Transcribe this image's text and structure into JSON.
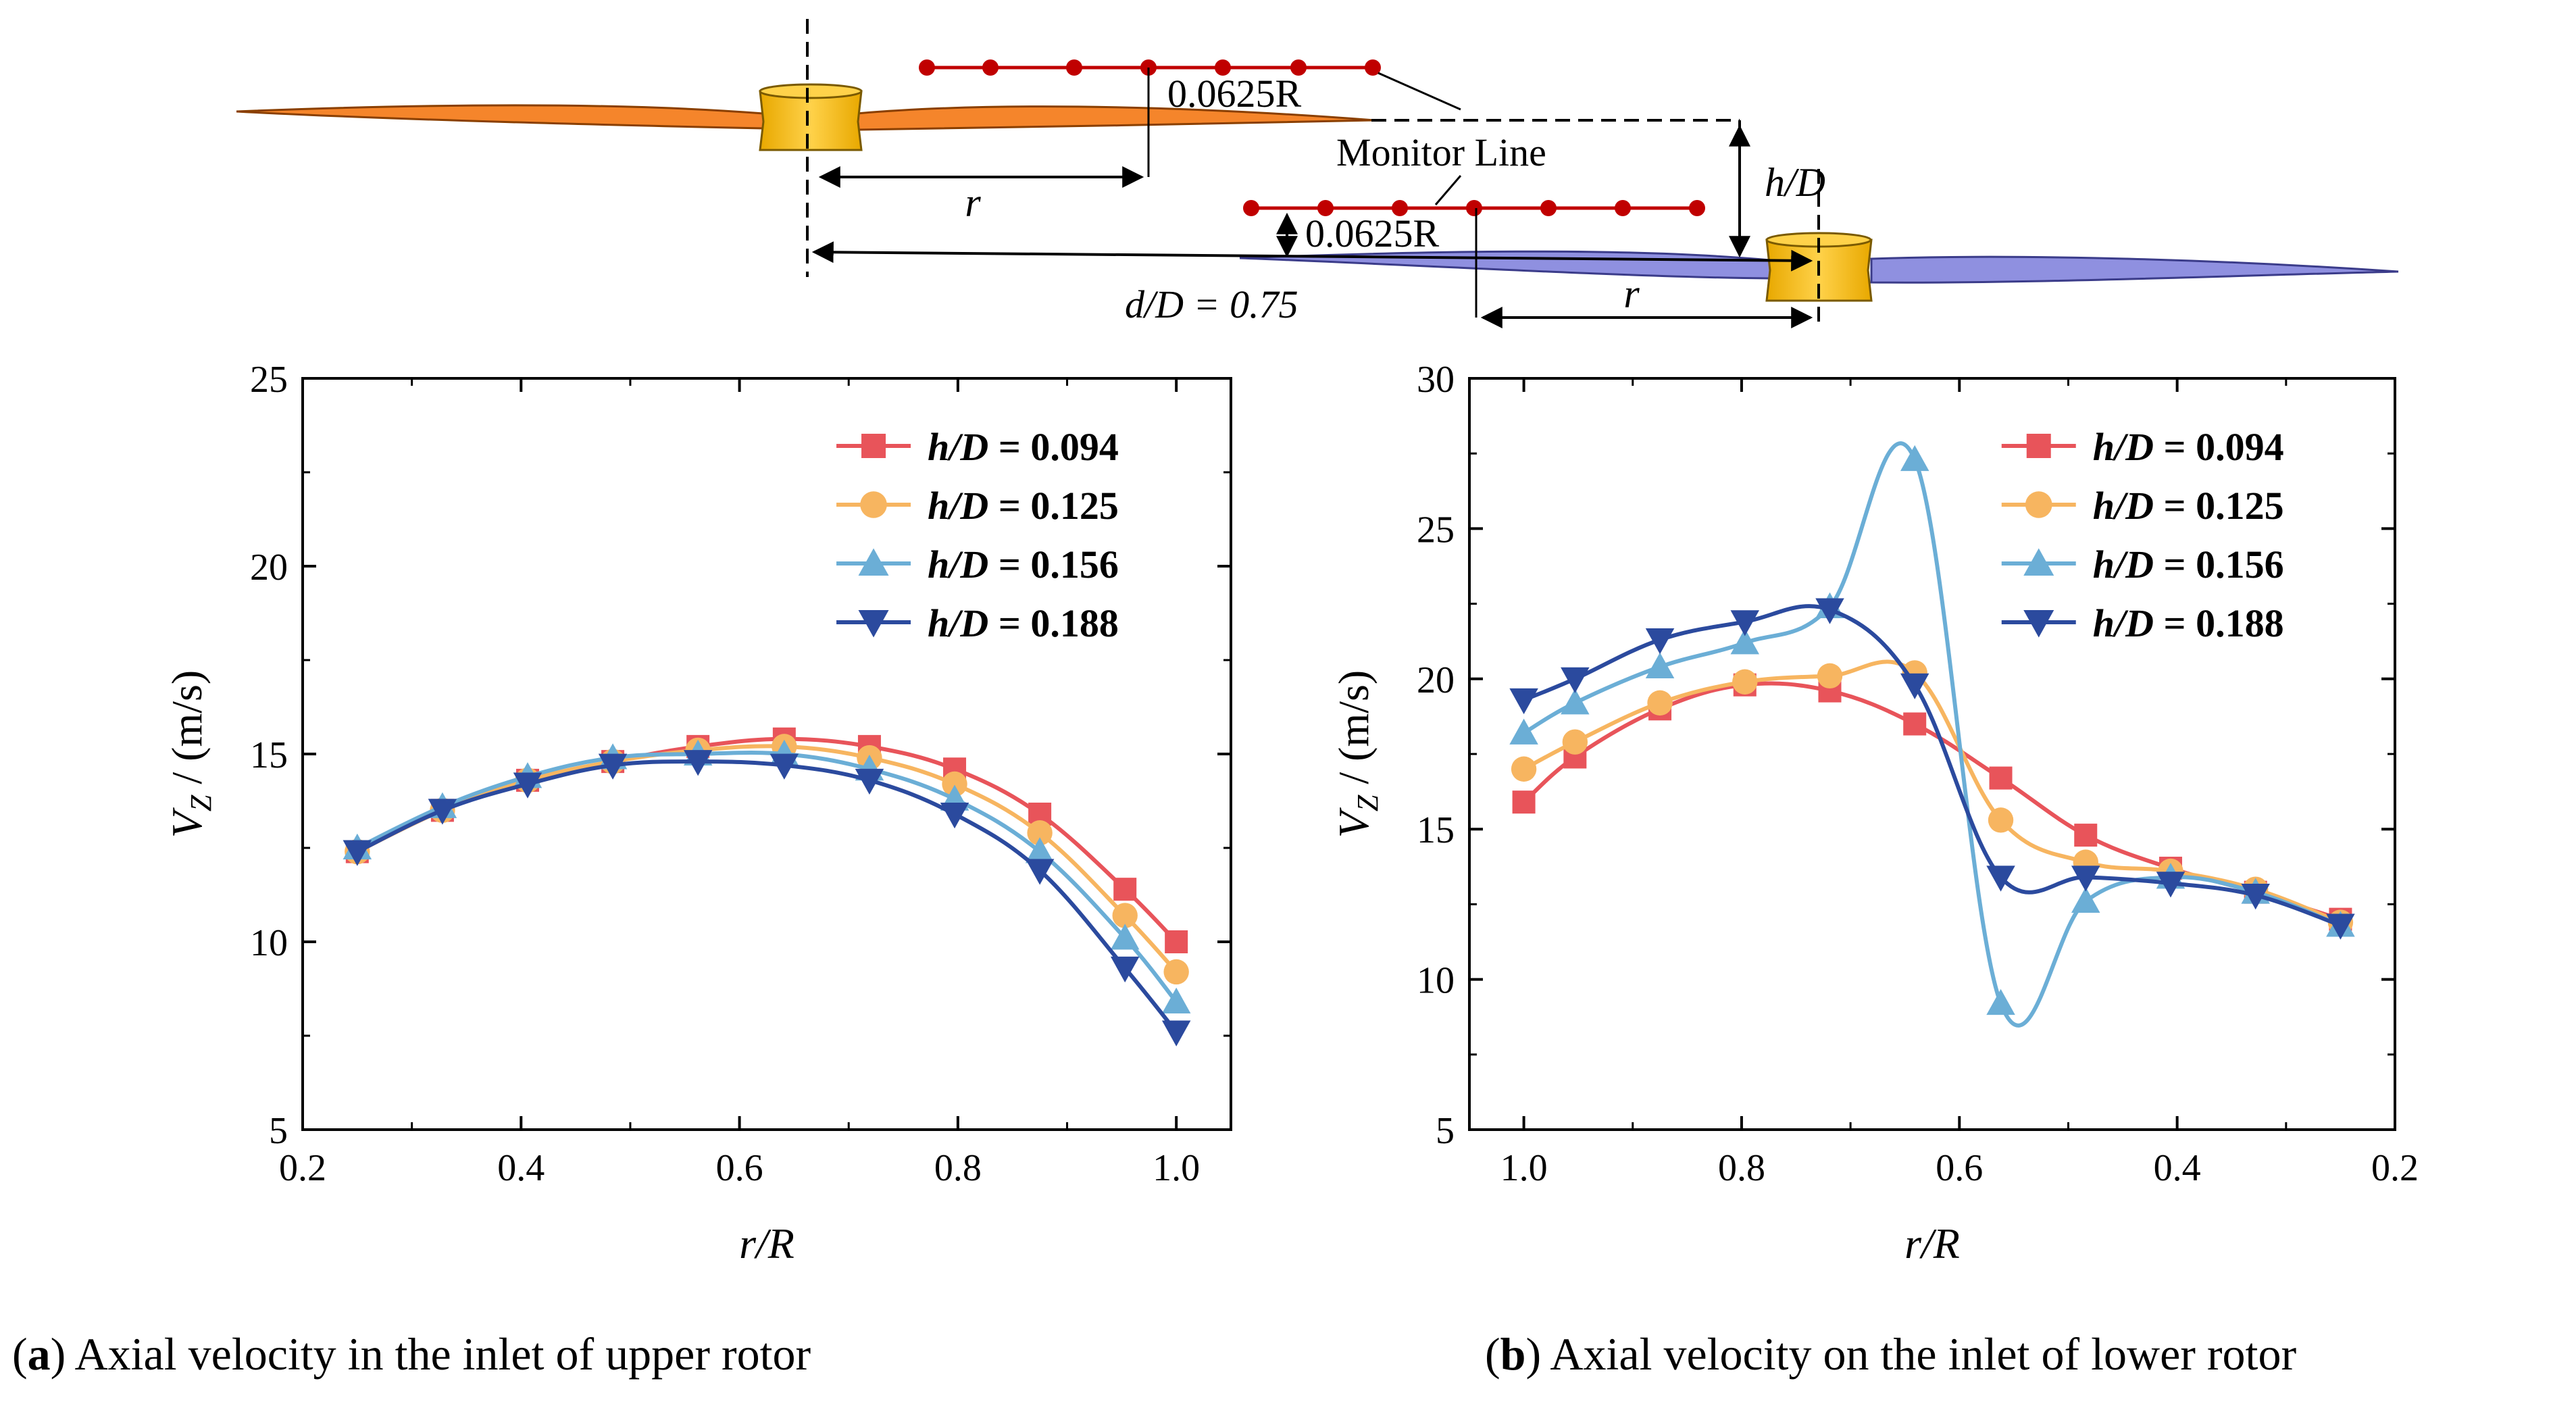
{
  "diagram": {
    "spacing_top": "0.0625R",
    "spacing_bottom": "0.0625R",
    "monitor_line_label": "Monitor Line",
    "radius_label_top": "r",
    "radius_label_bottom": "r",
    "height_label": "h/D",
    "distance_label": "d/D = 0.75",
    "colors": {
      "upper_blade": "#F5852B",
      "lower_blade": "#8F90E0",
      "hub": "#FFC41E",
      "monitor": "#C00000"
    }
  },
  "chart_data": [
    {
      "type": "line",
      "xlabel": "r/R",
      "ylabel": "VZ / (m/s)",
      "xlim": [
        0.2,
        1.05
      ],
      "ylim": [
        5,
        25
      ],
      "x_reversed": false,
      "xticks": [
        "0.2",
        "0.4",
        "0.6",
        "0.8",
        "1.0"
      ],
      "yticks": [
        "5",
        "10",
        "15",
        "20",
        "25"
      ],
      "legend_position": "top-right",
      "grid": false,
      "x": [
        0.25,
        0.328,
        0.406,
        0.484,
        0.562,
        0.641,
        0.719,
        0.797,
        0.875,
        0.953,
        1.0
      ],
      "series": [
        {
          "name": "h/D = 0.094",
          "color": "#E8545A",
          "marker": "square",
          "values": [
            12.4,
            13.5,
            14.3,
            14.8,
            15.2,
            15.4,
            15.2,
            14.6,
            13.4,
            11.4,
            10.0
          ]
        },
        {
          "name": "h/D = 0.125",
          "color": "#F7B560",
          "marker": "circle",
          "values": [
            12.4,
            13.5,
            14.3,
            14.8,
            15.1,
            15.2,
            14.9,
            14.2,
            12.9,
            10.7,
            9.2
          ]
        },
        {
          "name": "h/D = 0.156",
          "color": "#6BAED6",
          "marker": "triangle-up",
          "values": [
            12.5,
            13.6,
            14.4,
            14.9,
            15.0,
            15.0,
            14.6,
            13.8,
            12.4,
            10.1,
            8.4
          ]
        },
        {
          "name": "h/D = 0.188",
          "color": "#2B4A9E",
          "marker": "triangle-down",
          "values": [
            12.4,
            13.5,
            14.2,
            14.7,
            14.8,
            14.7,
            14.3,
            13.4,
            11.9,
            9.3,
            7.6
          ]
        }
      ]
    },
    {
      "type": "line",
      "xlabel": "r/R",
      "ylabel": "VZ / (m/s)",
      "xlim": [
        0.2,
        1.05
      ],
      "ylim": [
        5,
        30
      ],
      "x_reversed": true,
      "xticks": [
        "1.0",
        "0.8",
        "0.6",
        "0.4",
        "0.2"
      ],
      "yticks": [
        "5",
        "10",
        "15",
        "20",
        "25",
        "30"
      ],
      "legend_position": "top-right",
      "grid": false,
      "x": [
        1.0,
        0.953,
        0.875,
        0.797,
        0.719,
        0.641,
        0.562,
        0.484,
        0.406,
        0.328,
        0.25
      ],
      "series": [
        {
          "name": "h/D = 0.094",
          "color": "#E8545A",
          "marker": "square",
          "values": [
            15.9,
            17.4,
            19.0,
            19.8,
            19.6,
            18.5,
            16.7,
            14.8,
            13.7,
            12.9,
            12.0
          ]
        },
        {
          "name": "h/D = 0.125",
          "color": "#F7B560",
          "marker": "circle",
          "values": [
            17.0,
            17.9,
            19.2,
            19.9,
            20.1,
            20.2,
            15.3,
            13.9,
            13.6,
            13.0,
            11.9
          ]
        },
        {
          "name": "h/D = 0.156",
          "color": "#6BAED6",
          "marker": "triangle-up",
          "values": [
            18.2,
            19.2,
            20.4,
            21.2,
            22.4,
            27.3,
            9.2,
            12.6,
            13.4,
            12.9,
            11.8
          ]
        },
        {
          "name": "h/D = 0.188",
          "color": "#2B4A9E",
          "marker": "triangle-down",
          "values": [
            19.3,
            20.0,
            21.3,
            21.9,
            22.3,
            19.8,
            13.4,
            13.4,
            13.2,
            12.8,
            11.8
          ]
        }
      ]
    }
  ],
  "captions": [
    {
      "tag": "a",
      "text": " Axial velocity in the inlet of upper rotor"
    },
    {
      "tag": "b",
      "text": " Axial velocity on the inlet of lower rotor"
    }
  ]
}
